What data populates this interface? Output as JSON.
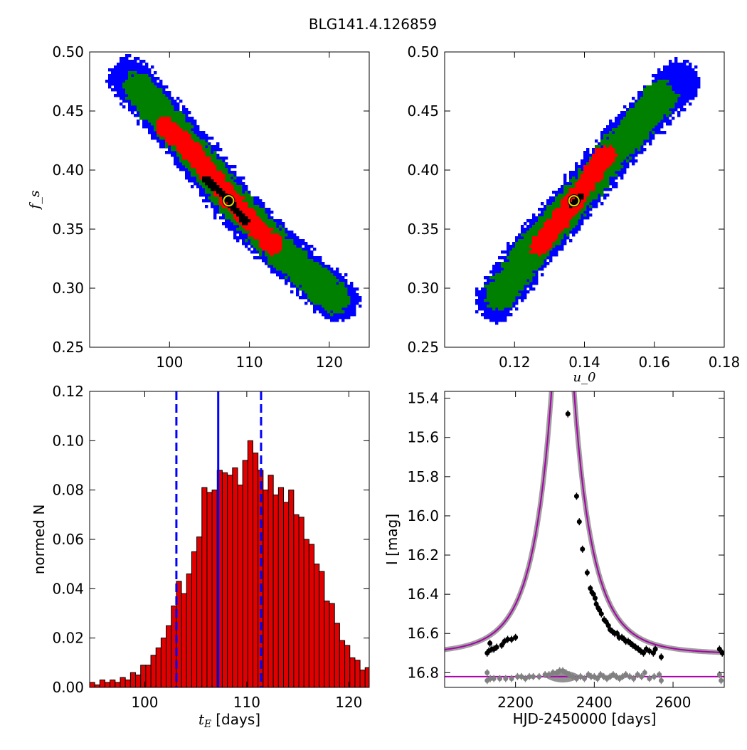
{
  "title": "BLG141.4.126859",
  "chart_data": [
    {
      "type": "scatter",
      "panel": "top-left",
      "title": "",
      "xlabel": "",
      "ylabel": "f_s",
      "xlim": [
        90,
        125
      ],
      "ylim": [
        0.25,
        0.5
      ],
      "xticks": [
        100,
        110,
        120
      ],
      "yticks": [
        0.25,
        0.3,
        0.35,
        0.4,
        0.45,
        0.5
      ],
      "xtick_labels": [
        "100",
        "110",
        "120"
      ],
      "ytick_labels": [
        "0.25",
        "0.30",
        "0.35",
        "0.40",
        "0.45",
        "0.50"
      ],
      "regions": [
        {
          "name": "3 sigma",
          "color": "#0000ff",
          "spine": [
            [
              95.0,
              0.478
            ],
            [
              102.0,
              0.424
            ],
            [
              108.0,
              0.373
            ],
            [
              114.0,
              0.331
            ],
            [
              121.0,
              0.29
            ]
          ],
          "halfwidth": 0.018
        },
        {
          "name": "2 sigma",
          "color": "#008000",
          "spine": [
            [
              96.0,
              0.47
            ],
            [
              102.0,
              0.423
            ],
            [
              108.0,
              0.373
            ],
            [
              114.0,
              0.331
            ],
            [
              120.5,
              0.292
            ]
          ],
          "halfwidth": 0.013
        },
        {
          "name": "1 sigma",
          "color": "#ff0000",
          "spine": [
            [
              99.5,
              0.437
            ],
            [
              103.0,
              0.414
            ],
            [
              108.0,
              0.372
            ],
            [
              113.0,
              0.336
            ]
          ],
          "halfwidth": 0.008
        },
        {
          "name": "best",
          "color": "#000000",
          "spine": [
            [
              104.5,
              0.393
            ],
            [
              107.0,
              0.377
            ],
            [
              109.5,
              0.356
            ]
          ],
          "halfwidth": 0.003
        }
      ],
      "best_fit": [
        107.4,
        0.374
      ]
    },
    {
      "type": "scatter",
      "panel": "top-right",
      "title": "",
      "xlabel": "u_0",
      "ylabel": "",
      "xlim": [
        0.1,
        0.18
      ],
      "ylim": [
        0.25,
        0.5
      ],
      "xticks": [
        0.12,
        0.14,
        0.16,
        0.18
      ],
      "yticks": [
        0.25,
        0.3,
        0.35,
        0.4,
        0.45,
        0.5
      ],
      "xtick_labels": [
        "0.12",
        "0.14",
        "0.16",
        "0.18"
      ],
      "ytick_labels": [
        "0.25",
        "0.30",
        "0.35",
        "0.40",
        "0.45",
        "0.50"
      ],
      "regions": [
        {
          "name": "3 sigma",
          "color": "#0000ff",
          "spine": [
            [
              0.115,
              0.29
            ],
            [
              0.125,
              0.333
            ],
            [
              0.137,
              0.373
            ],
            [
              0.15,
              0.421
            ],
            [
              0.167,
              0.475
            ]
          ],
          "halfwidth": 0.018
        },
        {
          "name": "2 sigma",
          "color": "#008000",
          "spine": [
            [
              0.116,
              0.295
            ],
            [
              0.126,
              0.336
            ],
            [
              0.137,
              0.373
            ],
            [
              0.15,
              0.421
            ],
            [
              0.162,
              0.462
            ]
          ],
          "halfwidth": 0.013
        },
        {
          "name": "1 sigma",
          "color": "#ff0000",
          "spine": [
            [
              0.127,
              0.336
            ],
            [
              0.137,
              0.373
            ],
            [
              0.146,
              0.413
            ]
          ],
          "halfwidth": 0.008
        },
        {
          "name": "best",
          "color": "#000000",
          "spine": [
            [
              0.136,
              0.37
            ],
            [
              0.139,
              0.378
            ]
          ],
          "halfwidth": 0.002
        }
      ],
      "best_fit": [
        0.137,
        0.374
      ]
    },
    {
      "type": "bar",
      "panel": "bottom-left",
      "title": "",
      "xlabel": "t_E [days]",
      "xlabel_unit": "[days]",
      "ylabel": "normed N",
      "xlim": [
        94.6,
        122.0
      ],
      "ylim": [
        0.0,
        0.12
      ],
      "xticks": [
        100,
        110,
        120
      ],
      "yticks": [
        0.0,
        0.02,
        0.04,
        0.06,
        0.08,
        0.1,
        0.12
      ],
      "xtick_labels": [
        "100",
        "110",
        "120"
      ],
      "ytick_labels": [
        "0.00",
        "0.02",
        "0.04",
        "0.06",
        "0.08",
        "0.10",
        "0.12"
      ],
      "bar_color": "#e00000",
      "bin_start": 94.6,
      "bin_width": 0.5,
      "values": [
        0.002,
        0.001,
        0.003,
        0.002,
        0.003,
        0.002,
        0.004,
        0.003,
        0.006,
        0.005,
        0.009,
        0.009,
        0.013,
        0.016,
        0.02,
        0.025,
        0.033,
        0.043,
        0.038,
        0.046,
        0.055,
        0.061,
        0.081,
        0.079,
        0.08,
        0.088,
        0.087,
        0.086,
        0.089,
        0.082,
        0.092,
        0.1,
        0.095,
        0.088,
        0.08,
        0.086,
        0.078,
        0.081,
        0.075,
        0.08,
        0.07,
        0.069,
        0.06,
        0.058,
        0.05,
        0.047,
        0.035,
        0.034,
        0.026,
        0.019,
        0.017,
        0.012,
        0.011,
        0.007,
        0.008,
        0.006,
        0.006,
        0.005,
        0.004,
        0.003,
        0.003,
        0.002,
        0.002,
        0.002,
        0.001
      ],
      "vlines": [
        {
          "x": 107.2,
          "style": "solid",
          "color": "#0000ff"
        },
        {
          "x": 103.1,
          "style": "dashed",
          "color": "#0000ff"
        },
        {
          "x": 111.4,
          "style": "dashed",
          "color": "#0000ff"
        }
      ]
    },
    {
      "type": "line",
      "panel": "bottom-right",
      "title": "",
      "xlabel": "HJD-2450000 [days]",
      "ylabel": "I [mag]",
      "xlim": [
        2020,
        2730
      ],
      "ylim": [
        16.875,
        15.365
      ],
      "xticks": [
        2200,
        2400,
        2600
      ],
      "yticks": [
        15.4,
        15.6,
        15.8,
        16.0,
        16.2,
        16.4,
        16.6,
        16.8
      ],
      "xtick_labels": [
        "2200",
        "2400",
        "2600"
      ],
      "ytick_labels": [
        "15.4",
        "15.6",
        "15.8",
        "16.0",
        "16.2",
        "16.4",
        "16.6",
        "16.8"
      ],
      "model": {
        "t0": 2320,
        "tE": 107.2,
        "u0": 0.137,
        "baseline": 16.705,
        "color": "#aa00aa"
      },
      "residual_baseline": 16.82,
      "data_points": [
        [
          2128,
          16.7
        ],
        [
          2132,
          16.69
        ],
        [
          2135,
          16.65
        ],
        [
          2140,
          16.68
        ],
        [
          2145,
          16.68
        ],
        [
          2152,
          16.67
        ],
        [
          2165,
          16.66
        ],
        [
          2172,
          16.64
        ],
        [
          2180,
          16.63
        ],
        [
          2190,
          16.63
        ],
        [
          2200,
          16.62
        ],
        [
          2333,
          15.48
        ],
        [
          2355,
          15.9
        ],
        [
          2362,
          16.03
        ],
        [
          2370,
          16.17
        ],
        [
          2382,
          16.29
        ],
        [
          2390,
          16.37
        ],
        [
          2394,
          16.39
        ],
        [
          2398,
          16.4
        ],
        [
          2402,
          16.42
        ],
        [
          2405,
          16.45
        ],
        [
          2410,
          16.47
        ],
        [
          2413,
          16.48
        ],
        [
          2418,
          16.5
        ],
        [
          2425,
          16.53
        ],
        [
          2430,
          16.54
        ],
        [
          2436,
          16.56
        ],
        [
          2440,
          16.58
        ],
        [
          2446,
          16.59
        ],
        [
          2452,
          16.6
        ],
        [
          2458,
          16.6
        ],
        [
          2463,
          16.62
        ],
        [
          2470,
          16.62
        ],
        [
          2476,
          16.63
        ],
        [
          2480,
          16.64
        ],
        [
          2486,
          16.64
        ],
        [
          2492,
          16.65
        ],
        [
          2498,
          16.66
        ],
        [
          2505,
          16.67
        ],
        [
          2512,
          16.68
        ],
        [
          2518,
          16.69
        ],
        [
          2525,
          16.7
        ],
        [
          2532,
          16.68
        ],
        [
          2540,
          16.69
        ],
        [
          2550,
          16.7
        ],
        [
          2555,
          16.68
        ],
        [
          2570,
          16.72
        ],
        [
          2718,
          16.68
        ],
        [
          2725,
          16.7
        ]
      ],
      "residual_points": [
        [
          2128,
          16.8
        ],
        [
          2128,
          16.84
        ],
        [
          2136,
          16.83
        ],
        [
          2145,
          16.83
        ],
        [
          2160,
          16.83
        ],
        [
          2175,
          16.83
        ],
        [
          2190,
          16.83
        ],
        [
          2205,
          16.82
        ],
        [
          2215,
          16.82
        ],
        [
          2225,
          16.83
        ],
        [
          2235,
          16.82
        ],
        [
          2245,
          16.82
        ],
        [
          2260,
          16.82
        ],
        [
          2275,
          16.81
        ],
        [
          2285,
          16.81
        ],
        [
          2295,
          16.8
        ],
        [
          2305,
          16.8
        ],
        [
          2312,
          16.79
        ],
        [
          2320,
          16.79
        ],
        [
          2328,
          16.8
        ],
        [
          2336,
          16.81
        ],
        [
          2345,
          16.82
        ],
        [
          2355,
          16.83
        ],
        [
          2365,
          16.82
        ],
        [
          2375,
          16.83
        ],
        [
          2385,
          16.81
        ],
        [
          2392,
          16.82
        ],
        [
          2400,
          16.82
        ],
        [
          2408,
          16.83
        ],
        [
          2416,
          16.81
        ],
        [
          2424,
          16.82
        ],
        [
          2432,
          16.83
        ],
        [
          2440,
          16.82
        ],
        [
          2448,
          16.81
        ],
        [
          2456,
          16.82
        ],
        [
          2464,
          16.83
        ],
        [
          2472,
          16.82
        ],
        [
          2480,
          16.81
        ],
        [
          2490,
          16.82
        ],
        [
          2500,
          16.83
        ],
        [
          2510,
          16.81
        ],
        [
          2520,
          16.82
        ],
        [
          2528,
          16.8
        ],
        [
          2540,
          16.83
        ],
        [
          2552,
          16.82
        ],
        [
          2565,
          16.81
        ],
        [
          2570,
          16.84
        ],
        [
          2718,
          16.81
        ],
        [
          2722,
          16.84
        ]
      ],
      "residual_band": {
        "center": 2320,
        "halfwidth": 45,
        "max_halfheight": 0.03
      },
      "data_color": "#000000",
      "residual_color": "#808080"
    }
  ]
}
